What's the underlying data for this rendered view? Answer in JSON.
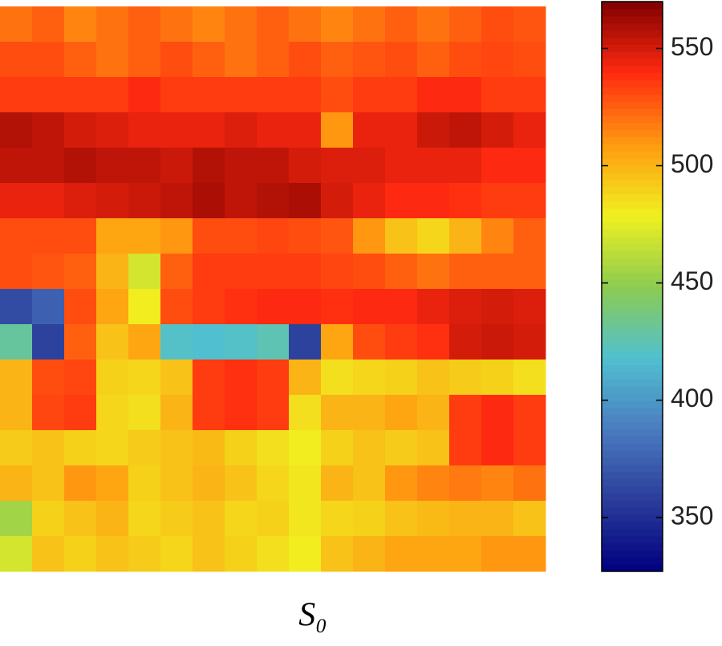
{
  "chart_data": {
    "type": "heatmap",
    "xlabel": "S₀",
    "z": [
      [
        520,
        525,
        515,
        520,
        525,
        520,
        515,
        520,
        525,
        520,
        515,
        520,
        525,
        520,
        525,
        530,
        528
      ],
      [
        530,
        530,
        525,
        520,
        525,
        530,
        525,
        520,
        525,
        530,
        525,
        528,
        530,
        525,
        530,
        532,
        530
      ],
      [
        535,
        535,
        535,
        535,
        540,
        535,
        535,
        535,
        535,
        535,
        530,
        535,
        535,
        540,
        540,
        535,
        535
      ],
      [
        558,
        555,
        550,
        548,
        545,
        545,
        545,
        548,
        545,
        545,
        510,
        545,
        545,
        552,
        555,
        550,
        545
      ],
      [
        555,
        555,
        558,
        555,
        555,
        552,
        558,
        555,
        555,
        550,
        548,
        548,
        545,
        545,
        545,
        540,
        540
      ],
      [
        545,
        545,
        548,
        550,
        552,
        555,
        560,
        555,
        558,
        560,
        550,
        545,
        540,
        540,
        538,
        535,
        535
      ],
      [
        530,
        530,
        530,
        505,
        505,
        510,
        530,
        530,
        532,
        530,
        528,
        510,
        495,
        488,
        500,
        515,
        525
      ],
      [
        530,
        528,
        525,
        500,
        470,
        525,
        535,
        535,
        535,
        535,
        532,
        530,
        525,
        520,
        525,
        525,
        525
      ],
      [
        365,
        375,
        530,
        505,
        480,
        530,
        535,
        538,
        540,
        540,
        538,
        540,
        540,
        545,
        548,
        550,
        548
      ],
      [
        430,
        360,
        525,
        495,
        505,
        420,
        418,
        420,
        425,
        360,
        505,
        530,
        535,
        538,
        550,
        552,
        550
      ],
      [
        500,
        530,
        532,
        490,
        488,
        495,
        535,
        538,
        535,
        500,
        485,
        488,
        490,
        495,
        492,
        490,
        485
      ],
      [
        500,
        532,
        535,
        488,
        485,
        500,
        535,
        538,
        535,
        485,
        500,
        500,
        505,
        500,
        535,
        540,
        535
      ],
      [
        492,
        495,
        490,
        488,
        492,
        495,
        498,
        490,
        485,
        480,
        490,
        495,
        492,
        495,
        535,
        540,
        535
      ],
      [
        500,
        495,
        510,
        505,
        490,
        495,
        500,
        495,
        488,
        482,
        500,
        495,
        510,
        515,
        518,
        515,
        520
      ],
      [
        455,
        490,
        495,
        500,
        488,
        492,
        495,
        488,
        490,
        482,
        488,
        490,
        495,
        498,
        500,
        500,
        495
      ],
      [
        470,
        495,
        490,
        495,
        492,
        488,
        495,
        490,
        485,
        480,
        495,
        500,
        505,
        505,
        505,
        510,
        510
      ]
    ],
    "zlim": [
      327,
      570
    ],
    "zticks": [
      350,
      400,
      450,
      500,
      550
    ],
    "colormap": [
      "#00007f",
      "#2a3c9a",
      "#4a7cc0",
      "#50c0d0",
      "#8ccc50",
      "#f0f020",
      "#ff9a10",
      "#ff2a10",
      "#800000"
    ]
  }
}
